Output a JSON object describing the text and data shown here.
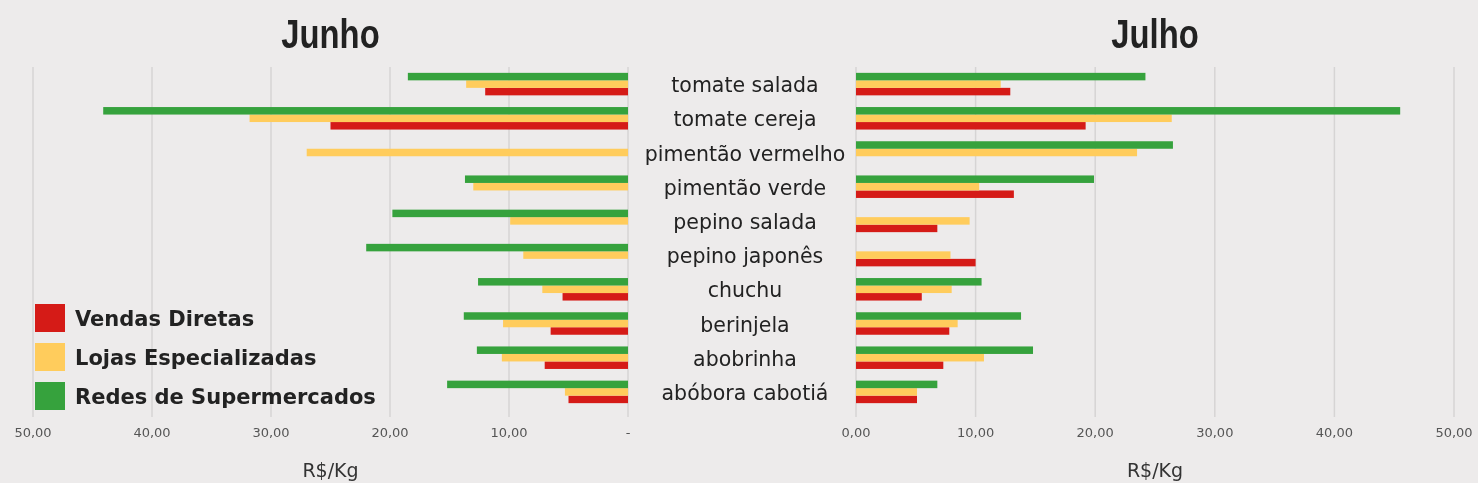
{
  "chart_data": [
    {
      "type": "bar",
      "orientation": "horizontal",
      "title": "Junho",
      "xlabel": "R$/Kg",
      "categories": [
        "tomate salada",
        "tomate cereja",
        "pimentão vermelho",
        "pimentão verde",
        "pepino salada",
        "pepino japonês",
        "chuchu",
        "berinjela",
        "abobrinha",
        "abóbora cabotiá"
      ],
      "series": [
        {
          "name": "Vendas Diretas",
          "color": "#d51b17",
          "values": [
            12.0,
            25.0,
            null,
            null,
            null,
            null,
            5.5,
            6.5,
            7.0,
            5.0
          ]
        },
        {
          "name": "Lojas Especializadas",
          "color": "#ffcc5c",
          "values": [
            13.6,
            31.8,
            27.0,
            13.0,
            9.9,
            8.8,
            7.2,
            10.5,
            10.6,
            5.3
          ]
        },
        {
          "name": "Redes de Supermercados",
          "color": "#36a23d",
          "values": [
            18.5,
            44.1,
            null,
            13.7,
            19.8,
            22.0,
            12.6,
            13.8,
            12.7,
            15.2
          ]
        }
      ],
      "xlim": [
        50,
        0
      ],
      "xticks": [
        {
          "value": 50,
          "label": "50,00"
        },
        {
          "value": 40,
          "label": "40,00"
        },
        {
          "value": 30,
          "label": "30,00"
        },
        {
          "value": 20,
          "label": "20,00"
        },
        {
          "value": 10,
          "label": "10,00"
        },
        {
          "value": 0,
          "label": "-"
        }
      ],
      "grid": "x",
      "legend": "bottom left"
    },
    {
      "type": "bar",
      "orientation": "horizontal",
      "title": "Julho",
      "xlabel": "R$/Kg",
      "series": [
        {
          "color": "#d51b17",
          "values": [
            12.9,
            19.2,
            null,
            13.2,
            6.8,
            10.0,
            5.5,
            7.8,
            7.3,
            5.1
          ]
        },
        {
          "color": "#ffcc5c",
          "values": [
            12.1,
            26.4,
            23.5,
            10.3,
            9.5,
            7.9,
            8.0,
            8.5,
            10.7,
            5.1
          ]
        },
        {
          "color": "#36a23d",
          "values": [
            24.2,
            45.5,
            26.5,
            19.9,
            null,
            null,
            10.5,
            13.8,
            14.8,
            6.8
          ]
        }
      ],
      "xlim": [
        0,
        50
      ],
      "xticks": [
        {
          "value": 0,
          "label": "0,00"
        },
        {
          "value": 10,
          "label": "10,00"
        },
        {
          "value": 20,
          "label": "20,00"
        },
        {
          "value": 30,
          "label": "30,00"
        },
        {
          "value": 40,
          "label": "40,00"
        },
        {
          "value": 50,
          "label": "50,00"
        }
      ],
      "grid": "x",
      "tick_labels": "x"
    }
  ]
}
